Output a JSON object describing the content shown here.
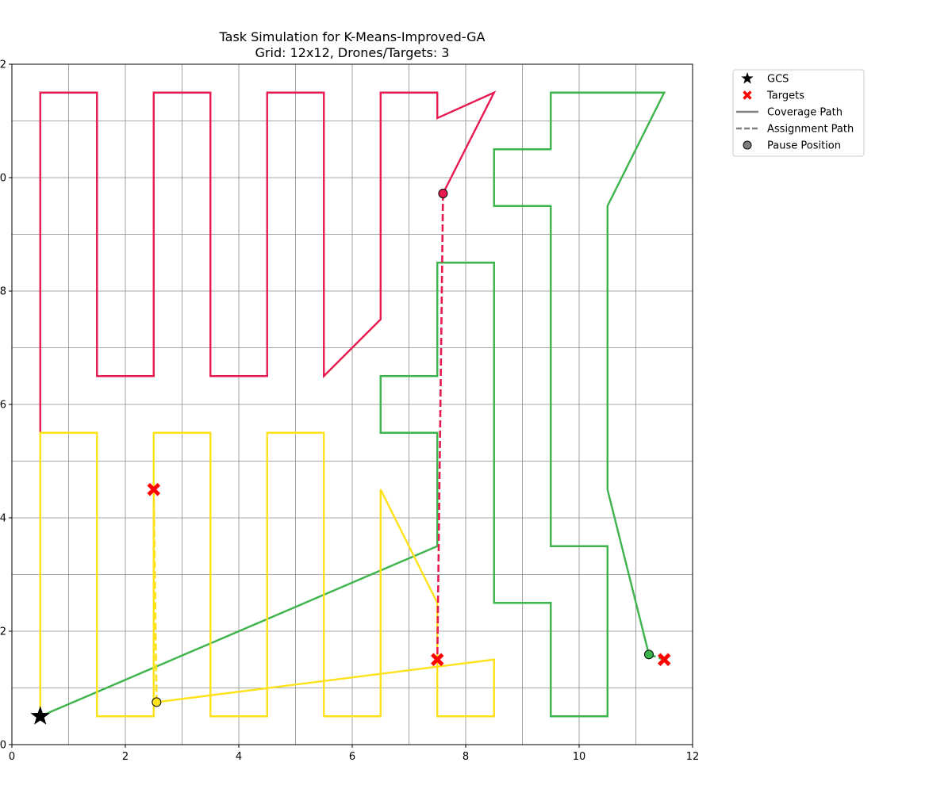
{
  "chart_data": {
    "type": "line",
    "title": "Task Simulation for K-Means-Improved-GA",
    "subtitle": "Grid: 12x12, Drones/Targets: 3",
    "xlabel": "",
    "ylabel": "",
    "xlim": [
      0,
      12
    ],
    "ylim": [
      0,
      12
    ],
    "x_ticks": [
      "0",
      "2",
      "4",
      "6",
      "8",
      "10",
      "12"
    ],
    "y_ticks": [
      "0",
      "2",
      "4",
      "6",
      "8",
      "10",
      "12"
    ],
    "grid": true,
    "grid_step": 1,
    "legend_position": "outside-top-right",
    "legend": [
      {
        "label": "GCS",
        "marker": "star",
        "color": "#000000"
      },
      {
        "label": "Targets",
        "marker": "x",
        "color": "#ff0000"
      },
      {
        "label": "Coverage Path",
        "marker": "solid-line",
        "color": "#808080"
      },
      {
        "label": "Assignment Path",
        "marker": "dashed-line",
        "color": "#808080"
      },
      {
        "label": "Pause Position",
        "marker": "circle",
        "color": "#808080"
      }
    ],
    "gcs": {
      "x": 0.5,
      "y": 0.5,
      "color": "#000000"
    },
    "targets": [
      {
        "x": 2.5,
        "y": 4.5
      },
      {
        "x": 7.5,
        "y": 1.5
      },
      {
        "x": 11.5,
        "y": 1.5
      }
    ],
    "target_color": "#ff0000",
    "series": [
      {
        "color": "#e8194f",
        "coverage_path": [
          [
            0.5,
            5.5
          ],
          [
            0.5,
            11.5
          ],
          [
            1.5,
            11.5
          ],
          [
            1.5,
            6.5
          ],
          [
            2.5,
            6.5
          ],
          [
            2.5,
            11.5
          ],
          [
            3.5,
            11.5
          ],
          [
            3.5,
            6.5
          ],
          [
            4.5,
            6.5
          ],
          [
            4.5,
            11.5
          ],
          [
            5.5,
            11.5
          ],
          [
            5.5,
            6.5
          ],
          [
            6.5,
            7.5
          ],
          [
            6.5,
            11.5
          ],
          [
            7.5,
            11.5
          ],
          [
            7.5,
            11.05
          ],
          [
            8.5,
            11.5
          ],
          [
            7.6,
            9.72
          ]
        ],
        "assignment_path": [
          [
            7.6,
            9.72
          ],
          [
            7.5,
            1.5
          ]
        ],
        "pause": {
          "x": 7.6,
          "y": 9.72
        }
      },
      {
        "color": "#3cb44b",
        "coverage_path": [
          [
            0.5,
            0.5
          ],
          [
            7.5,
            3.5
          ],
          [
            7.5,
            5.5
          ],
          [
            6.5,
            5.5
          ],
          [
            6.5,
            6.5
          ],
          [
            7.5,
            6.5
          ],
          [
            7.5,
            8.5
          ],
          [
            8.5,
            8.5
          ],
          [
            8.5,
            2.5
          ],
          [
            9.5,
            2.5
          ],
          [
            9.5,
            0.5
          ],
          [
            10.5,
            0.5
          ],
          [
            10.5,
            3.5
          ],
          [
            9.5,
            3.5
          ],
          [
            9.5,
            9.5
          ],
          [
            8.5,
            9.5
          ],
          [
            8.5,
            10.5
          ],
          [
            9.5,
            10.5
          ],
          [
            9.5,
            11.5
          ],
          [
            11.5,
            11.5
          ],
          [
            10.5,
            9.5
          ],
          [
            10.5,
            4.5
          ],
          [
            11.23,
            1.59
          ]
        ],
        "assignment_path": [
          [
            11.23,
            1.59
          ],
          [
            11.5,
            1.5
          ]
        ],
        "pause": {
          "x": 11.23,
          "y": 1.59
        }
      },
      {
        "color": "#ffe119",
        "coverage_path": [
          [
            0.5,
            0.5
          ],
          [
            0.5,
            5.5
          ],
          [
            1.5,
            5.5
          ],
          [
            1.5,
            0.5
          ],
          [
            2.5,
            0.5
          ],
          [
            2.5,
            5.5
          ],
          [
            3.5,
            5.5
          ],
          [
            3.5,
            0.5
          ],
          [
            4.5,
            0.5
          ],
          [
            4.5,
            5.5
          ],
          [
            5.5,
            5.5
          ],
          [
            5.5,
            0.5
          ],
          [
            6.5,
            0.5
          ],
          [
            6.5,
            4.5
          ],
          [
            7.5,
            2.5
          ],
          [
            7.5,
            0.5
          ],
          [
            8.5,
            0.5
          ],
          [
            8.5,
            1.5
          ],
          [
            2.55,
            0.75
          ]
        ],
        "assignment_path": [
          [
            2.55,
            0.75
          ],
          [
            2.5,
            4.5
          ]
        ],
        "pause": {
          "x": 2.55,
          "y": 0.75
        }
      }
    ]
  }
}
